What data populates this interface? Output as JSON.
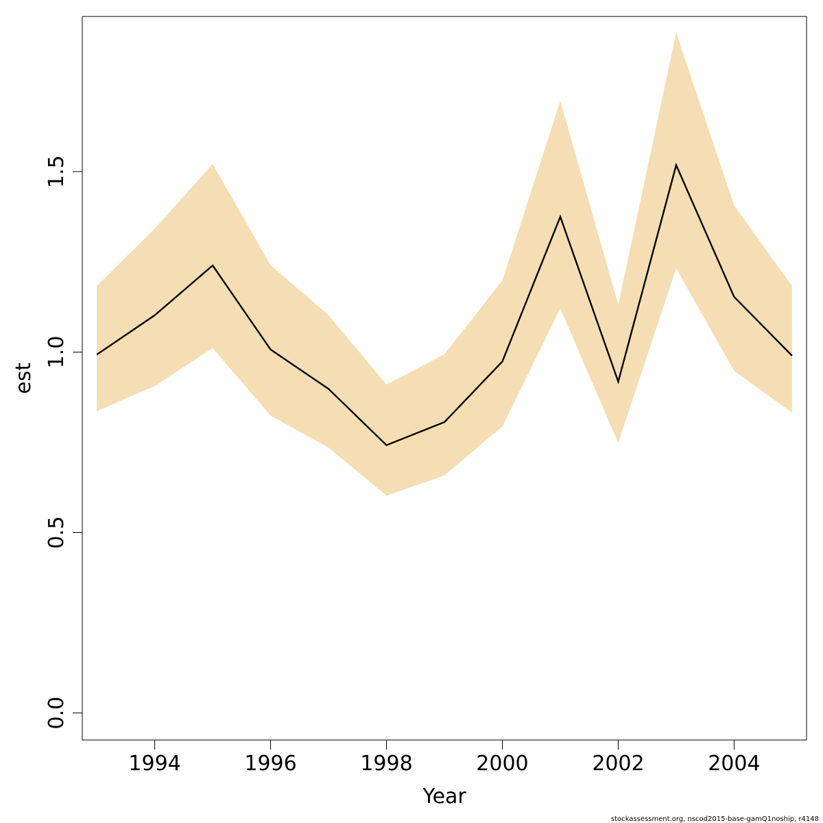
{
  "chart_data": {
    "type": "line",
    "title": "",
    "xlabel": "Year",
    "ylabel": "est",
    "x": [
      1993,
      1994,
      1995,
      1996,
      1997,
      1998,
      1999,
      2000,
      2001,
      2002,
      2003,
      2004,
      2005
    ],
    "series": [
      {
        "values": [
          0.993,
          1.102,
          1.24,
          1.007,
          0.898,
          0.742,
          0.806,
          0.974,
          1.375,
          0.918,
          1.518,
          1.153,
          0.99
        ]
      }
    ],
    "band": {
      "lower": [
        0.836,
        0.906,
        1.011,
        0.824,
        0.735,
        0.602,
        0.658,
        0.794,
        1.121,
        0.748,
        1.232,
        0.948,
        0.832
      ],
      "upper": [
        1.183,
        1.342,
        1.521,
        1.241,
        1.102,
        0.91,
        0.994,
        1.198,
        1.696,
        1.131,
        1.885,
        1.406,
        1.183
      ]
    },
    "xlim": [
      1992.75,
      2005.25
    ],
    "ylim": [
      -0.075,
      1.93
    ],
    "xticks": [
      1994,
      1996,
      1998,
      2000,
      2002,
      2004
    ],
    "xtick_labels": [
      "1994",
      "1996",
      "1998",
      "2000",
      "2002",
      "2004"
    ],
    "yticks": [
      0.0,
      0.5,
      1.0,
      1.5
    ],
    "ytick_labels": [
      "0.0",
      "0.5",
      "1.0",
      "1.5"
    ],
    "grid": false,
    "colors": {
      "line": "#000000",
      "band": "#f5deb3",
      "axis": "#000000"
    }
  },
  "footer": {
    "credit": "stockassessment.org, nscod2015-base-gamQ1noship, r4148"
  }
}
